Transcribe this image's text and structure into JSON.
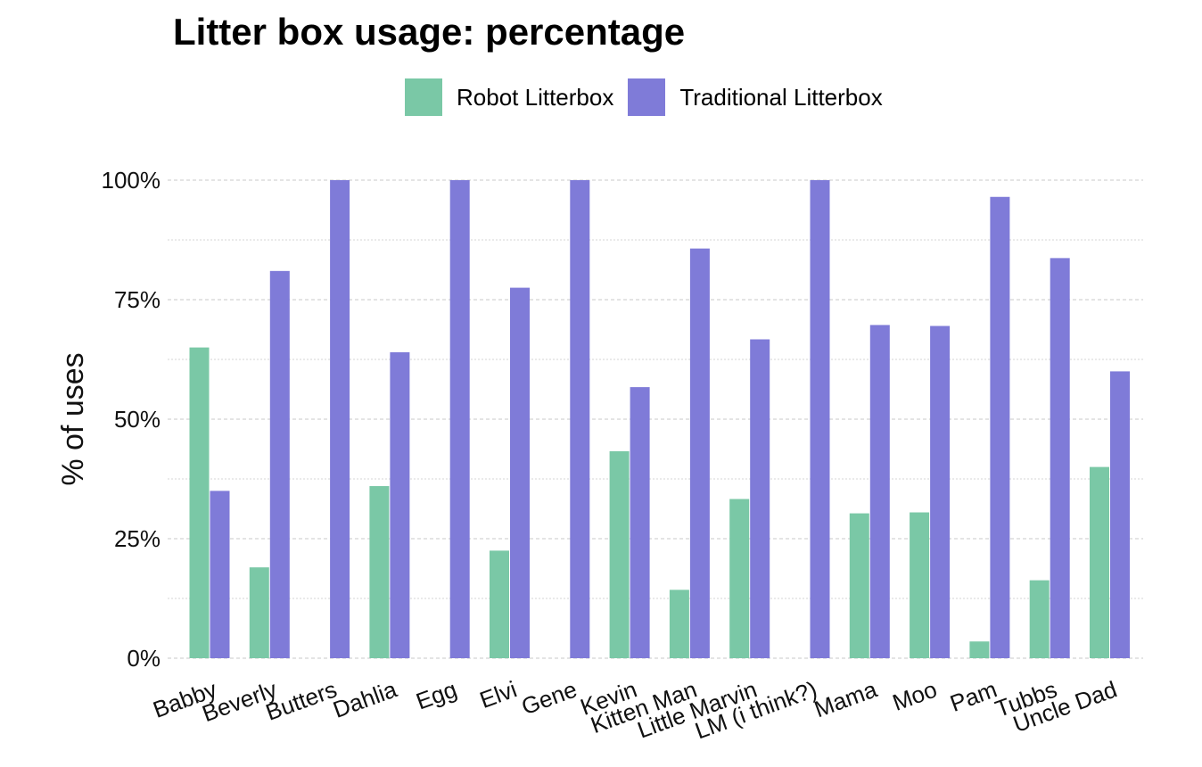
{
  "chart_data": {
    "type": "bar",
    "title": "Litter box usage: percentage",
    "xlabel": "",
    "ylabel": "% of uses",
    "ylim": [
      0,
      100
    ],
    "yticks": [
      "0%",
      "25%",
      "50%",
      "75%",
      "100%"
    ],
    "grid": true,
    "legend_position": "top",
    "categories": [
      "Babby",
      "Beverly",
      "Butters",
      "Dahlia",
      "Egg",
      "Elvi",
      "Gene",
      "Kevin",
      "Kitten Man",
      "Little Marvin",
      "LM (i think?)",
      "Mama",
      "Moo",
      "Pam",
      "Tubbs",
      "Uncle Dad"
    ],
    "series": [
      {
        "name": "Robot Litterbox",
        "color": "#7ac8a6",
        "values": [
          65,
          19,
          0,
          36,
          0,
          22.5,
          0,
          43.3,
          14.3,
          33.3,
          0,
          30.3,
          30.5,
          3.5,
          16.3,
          40
        ]
      },
      {
        "name": "Traditional Litterbox",
        "color": "#7f7bd8",
        "values": [
          35,
          81,
          100,
          64,
          100,
          77.5,
          100,
          56.7,
          85.7,
          66.7,
          100,
          69.7,
          69.5,
          96.5,
          83.7,
          60
        ]
      }
    ]
  }
}
